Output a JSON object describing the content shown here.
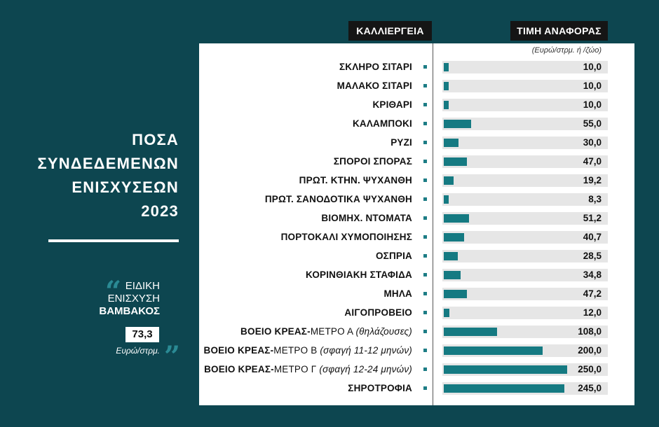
{
  "left_panel": {
    "title_lines": [
      "ΠΟΣΑ",
      "ΣΥΝΔΕΔΕΜΕΝΩΝ",
      "ΕΝΙΣΧΥΣΕΩΝ",
      "2023"
    ],
    "special": {
      "line1": "ΕΙΔΙΚΗ",
      "line2": "ΕΝΙΣΧΥΣΗ",
      "line3": "ΒΑΜΒΑΚΟΣ",
      "value": "73,3",
      "unit": "Ευρώ/στρμ."
    }
  },
  "chart_data": {
    "type": "bar",
    "orientation": "horizontal",
    "category_header": "ΚΑΛΛΙΕΡΓΕΙΑ",
    "value_header": "ΤΙΜΗ ΑΝΑΦΟΡΑΣ",
    "unit_note": "(Ευρώ/στρμ. ή /ζώο)",
    "xlim": [
      0,
      250
    ],
    "categories": [
      {
        "bold": "ΣΚΛΗΡΟ ΣΙΤΑΡΙ",
        "plain": "",
        "note": ""
      },
      {
        "bold": "ΜΑΛΑΚΟ ΣΙΤΑΡΙ",
        "plain": "",
        "note": ""
      },
      {
        "bold": "ΚΡΙΘΑΡΙ",
        "plain": "",
        "note": ""
      },
      {
        "bold": "ΚΑΛΑΜΠΟΚΙ",
        "plain": "",
        "note": ""
      },
      {
        "bold": "ΡΥΖΙ",
        "plain": "",
        "note": ""
      },
      {
        "bold": "ΣΠΟΡΟΙ ΣΠΟΡΑΣ",
        "plain": "",
        "note": ""
      },
      {
        "bold": "ΠΡΩΤ. ΚΤΗΝ. ΨΥΧΑΝΘΗ",
        "plain": "",
        "note": ""
      },
      {
        "bold": "ΠΡΩΤ. ΣΑΝΟΔΟΤΙΚΑ ΨΥΧΑΝΘΗ",
        "plain": "",
        "note": ""
      },
      {
        "bold": "ΒΙΟΜΗΧ. ΝΤΟΜΑΤΑ",
        "plain": "",
        "note": ""
      },
      {
        "bold": "ΠΟΡΤΟΚΑΛΙ ΧΥΜΟΠΟΙΗΣΗΣ",
        "plain": "",
        "note": ""
      },
      {
        "bold": "ΟΣΠΡΙΑ",
        "plain": "",
        "note": ""
      },
      {
        "bold": "ΚΟΡΙΝΘΙΑΚΗ ΣΤΑΦΙΔΑ",
        "plain": "",
        "note": ""
      },
      {
        "bold": "ΜΗΛΑ",
        "plain": "",
        "note": ""
      },
      {
        "bold": "ΑΙΓΟΠΡΟΒΕΙΟ",
        "plain": "",
        "note": ""
      },
      {
        "bold": "ΒΟΕΙΟ ΚΡΕΑΣ-",
        "plain": "ΜΕΤΡΟ Α ",
        "note": "(θηλάζουσες)"
      },
      {
        "bold": "ΒΟΕΙΟ ΚΡΕΑΣ-",
        "plain": "ΜΕΤΡΟ Β ",
        "note": "(σφαγή 11-12 μηνών)"
      },
      {
        "bold": "ΒΟΕΙΟ ΚΡΕΑΣ-",
        "plain": "ΜΕΤΡΟ Γ ",
        "note": "(σφαγή 12-24 μηνών)"
      },
      {
        "bold": "ΣΗΡΟΤΡΟΦΙΑ",
        "plain": "",
        "note": ""
      }
    ],
    "values": [
      10.0,
      10.0,
      10.0,
      55.0,
      30.0,
      47.0,
      19.2,
      8.3,
      51.2,
      40.7,
      28.5,
      34.8,
      47.2,
      12.0,
      108.0,
      200.0,
      250.0,
      245.0
    ],
    "value_labels": [
      "10,0",
      "10,0",
      "10,0",
      "55,0",
      "30,0",
      "47,0",
      "19,2",
      "8,3",
      "51,2",
      "40,7",
      "28,5",
      "34,8",
      "47,2",
      "12,0",
      "108,0",
      "200,0",
      "250,0",
      "245,0"
    ],
    "colors": {
      "bar": "#157a82",
      "track": "#e6e6e6",
      "background": "#0d4650"
    }
  }
}
